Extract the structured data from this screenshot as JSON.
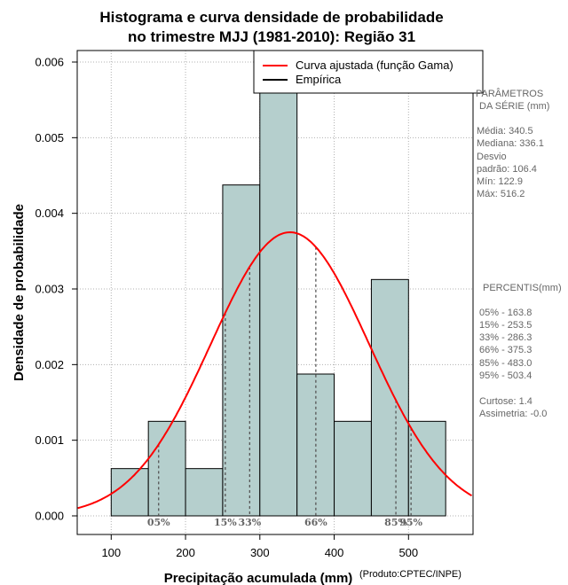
{
  "chart_data": {
    "type": "histogram",
    "title_line1": "Histograma e curva densidade de probabilidade",
    "title_line2": "no trimestre MJJ (1981-2010): Região 31",
    "xlabel": "Precipitação acumulada (mm)",
    "ylabel": "Densidade de probabilidade",
    "credit": "(Produto:CPTEC/INPE)",
    "xlim": [
      55,
      585
    ],
    "ylim": [
      0,
      0.006
    ],
    "x_ticks": [
      "100",
      "200",
      "300",
      "400",
      "500"
    ],
    "y_ticks": [
      "0.000",
      "0.001",
      "0.002",
      "0.003",
      "0.004",
      "0.005",
      "0.006"
    ],
    "bins": [
      {
        "x0": 100,
        "x1": 150,
        "density": 0.000625
      },
      {
        "x0": 150,
        "x1": 200,
        "density": 0.00125
      },
      {
        "x0": 200,
        "x1": 250,
        "density": 0.000625
      },
      {
        "x0": 250,
        "x1": 300,
        "density": 0.004375
      },
      {
        "x0": 300,
        "x1": 350,
        "density": 0.0065
      },
      {
        "x0": 350,
        "x1": 400,
        "density": 0.001875
      },
      {
        "x0": 400,
        "x1": 450,
        "density": 0.00125
      },
      {
        "x0": 450,
        "x1": 500,
        "density": 0.003125
      },
      {
        "x0": 500,
        "x1": 550,
        "density": 0.00125
      }
    ],
    "curve": {
      "name": "Curva ajustada (função Gama)",
      "mean": 340.5,
      "sd": 106.4,
      "color": "#ff0000"
    },
    "percentile_lines": [
      {
        "label": "05%",
        "value": 163.8
      },
      {
        "label": "15%",
        "value": 253.5
      },
      {
        "label": "33%",
        "value": 286.3
      },
      {
        "label": "66%",
        "value": 375.3
      },
      {
        "label": "85%",
        "value": 483.0
      },
      {
        "label": "95%",
        "value": 503.4
      }
    ],
    "legend": [
      {
        "label": "Curva ajustada (função Gama)",
        "color": "#ff0000"
      },
      {
        "label": "Empírica",
        "color": "#000000"
      }
    ],
    "bar_color": "#b5cfcd"
  },
  "stats_panel": {
    "header1": "PARÂMETROS",
    "header2": "DA SÉRIE (mm)",
    "mean": "Média:  340.5",
    "median": "Mediana:  336.1",
    "sd1": "Desvio",
    "sd2": "padrão:  106.4",
    "min": "Mín:  122.9",
    "max": "Máx:  516.2",
    "pct_header": "PERCENTIS(mm)",
    "p05": "05% -  163.8",
    "p15": "15% -  253.5",
    "p33": "33% -  286.3",
    "p66": "66% -  375.3",
    "p85": "85% -  483.0",
    "p95": "95% -  503.4",
    "kurtosis": "Curtose:  1.4",
    "skewness": "Assimetria:  -0.0"
  }
}
